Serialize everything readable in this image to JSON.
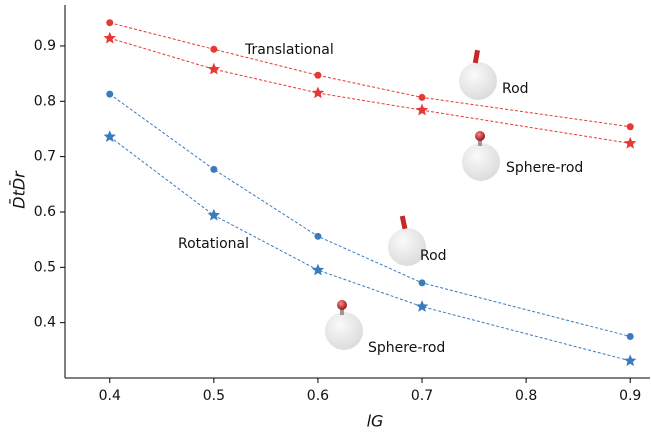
{
  "chart_data": {
    "type": "line",
    "x": [
      0.4,
      0.5,
      0.6,
      0.7,
      0.9
    ],
    "series": [
      {
        "color": "#e53935",
        "marker": "circle",
        "values": [
          0.942,
          0.894,
          0.847,
          0.807,
          0.754
        ]
      },
      {
        "color": "#e53935",
        "marker": "star",
        "values": [
          0.914,
          0.858,
          0.815,
          0.784,
          0.724
        ]
      },
      {
        "color": "#3a7bbf",
        "marker": "circle",
        "values": [
          0.813,
          0.677,
          0.556,
          0.472,
          0.375
        ]
      },
      {
        "color": "#3a7bbf",
        "marker": "star",
        "values": [
          0.736,
          0.594,
          0.495,
          0.429,
          0.331
        ]
      }
    ],
    "xlim": [
      0.357,
      0.919
    ],
    "ylim": [
      0.3,
      0.974
    ],
    "xticks": [
      0.4,
      0.5,
      0.6,
      0.7,
      0.8,
      0.9
    ],
    "yticks": [
      0.4,
      0.5,
      0.6,
      0.7,
      0.8,
      0.9
    ],
    "xlabel": "lG",
    "ylabel": "D̄tD̄r",
    "annotations": [
      "Translational",
      "Rod",
      "Sphere-rod",
      "Rotational",
      "Rod",
      "Sphere-rod"
    ]
  }
}
